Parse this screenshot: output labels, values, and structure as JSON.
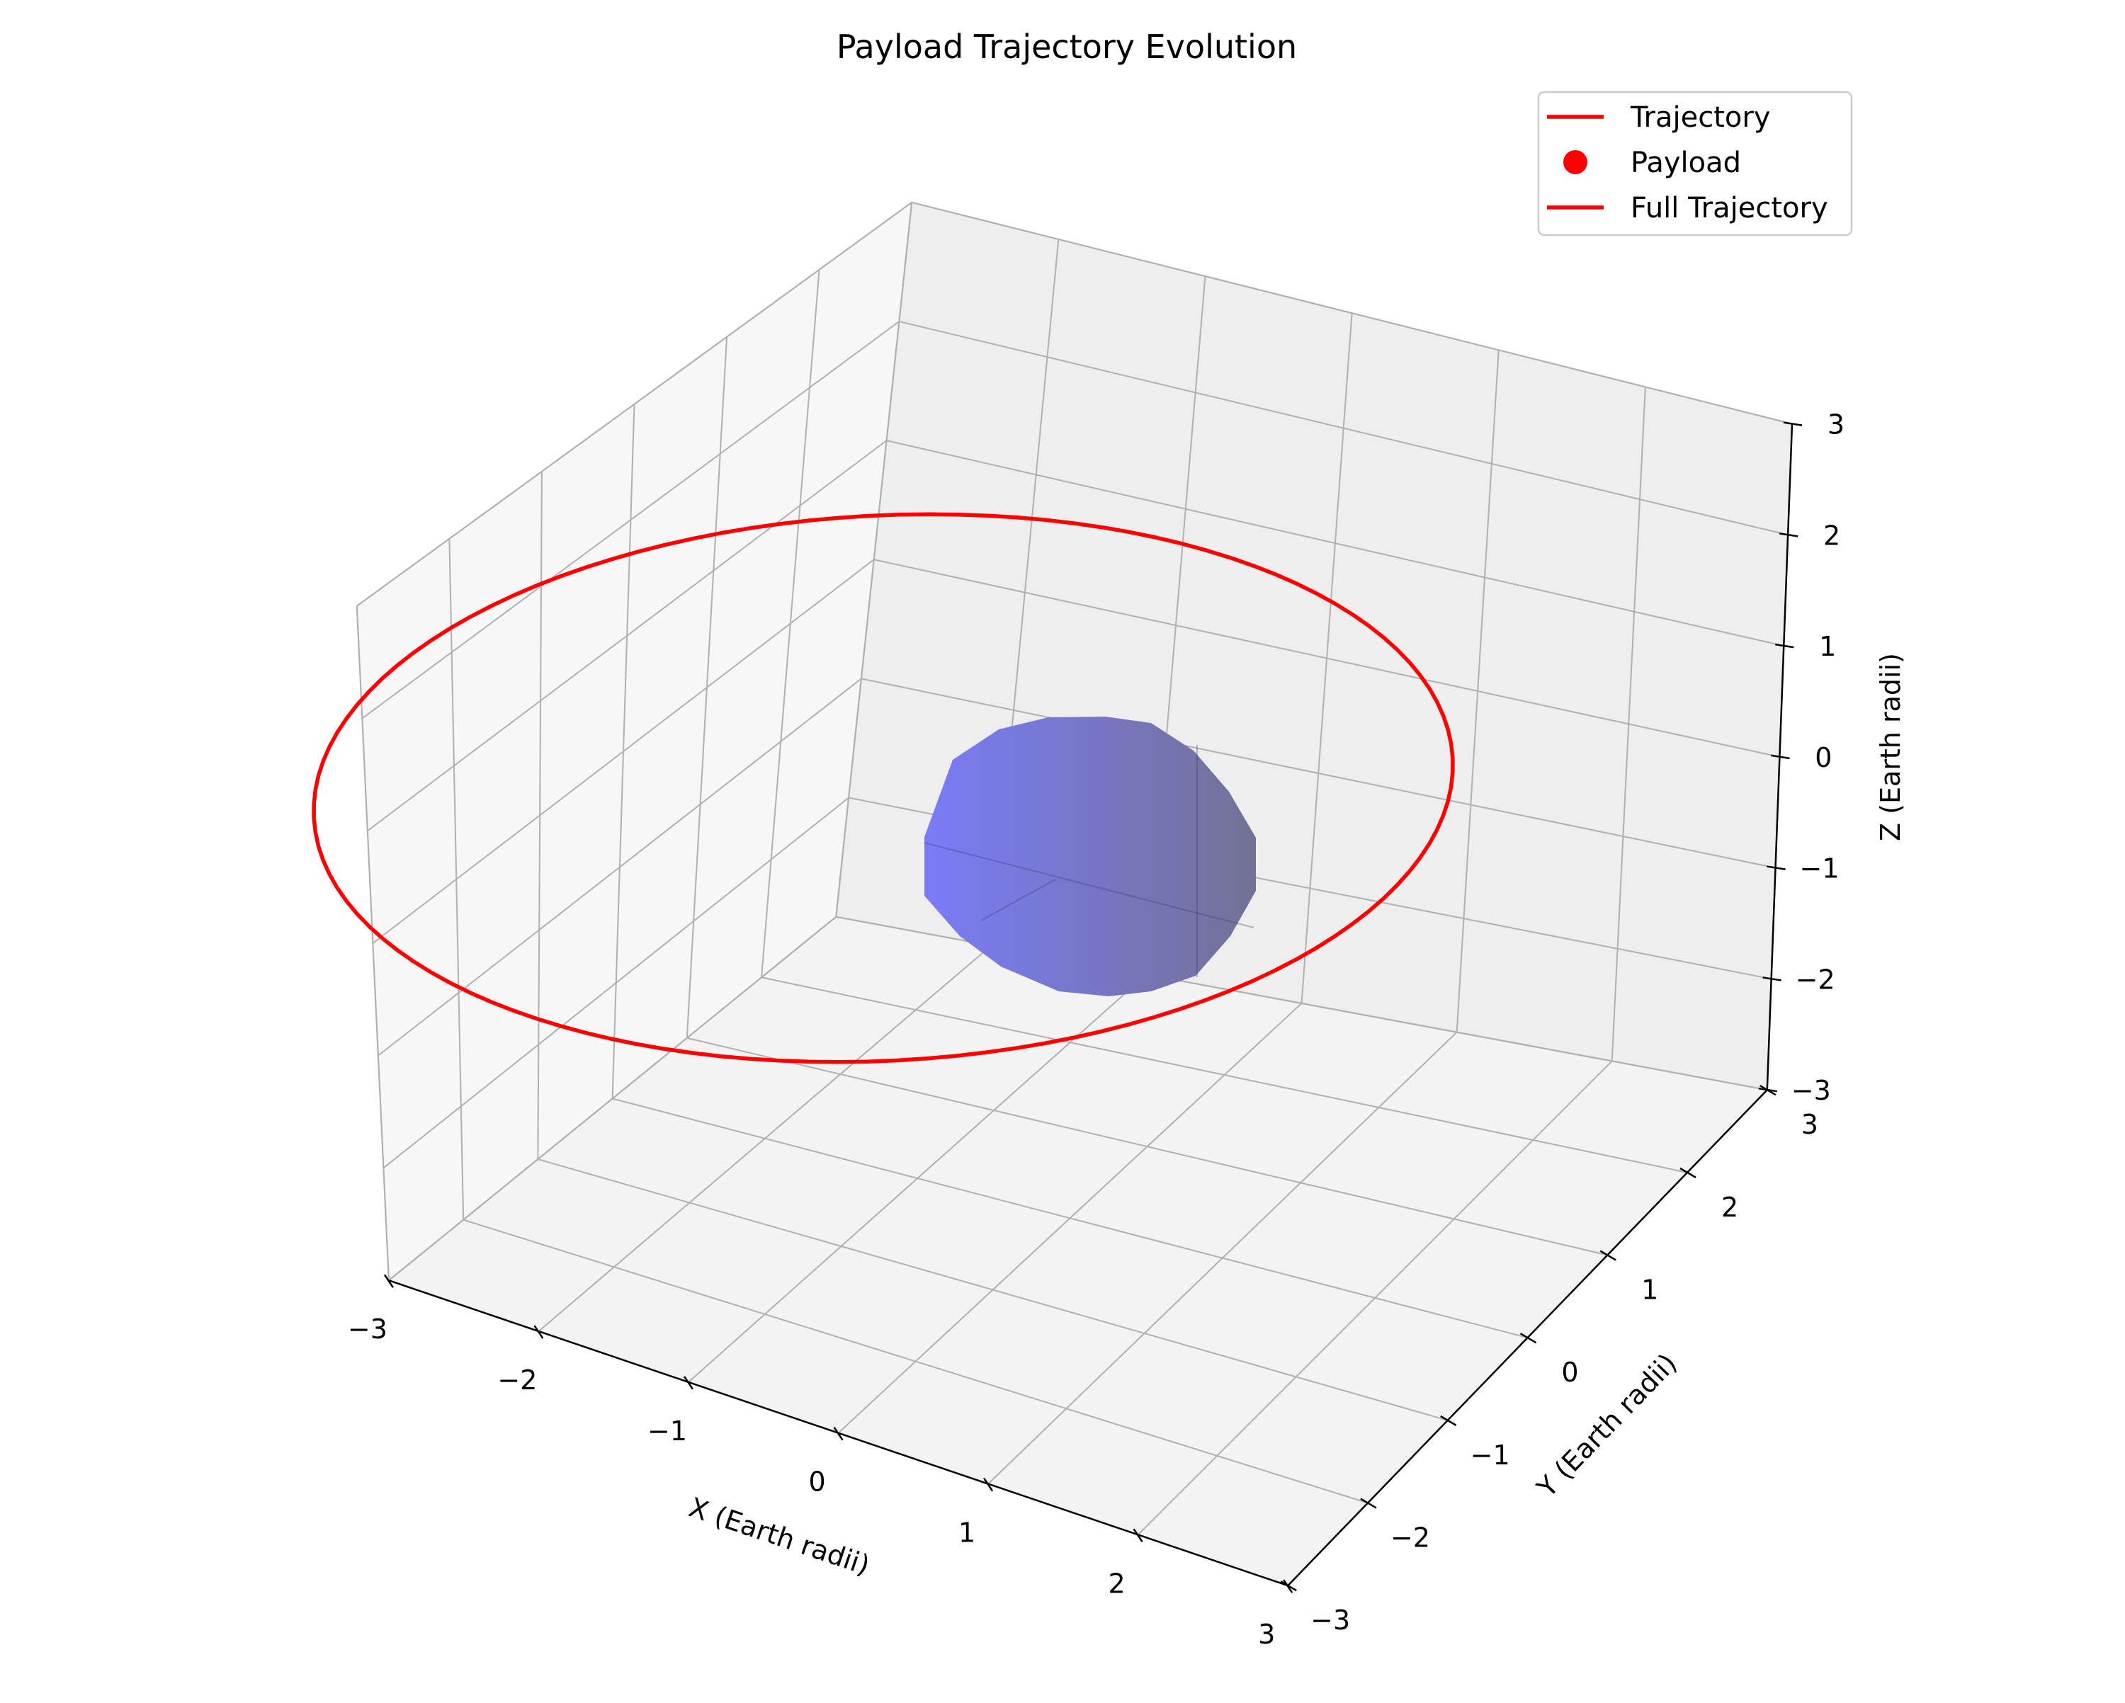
{
  "chart_data": {
    "type": "line",
    "projection": "3d",
    "title": "Payload Trajectory Evolution",
    "xlabel": "X (Earth radii)",
    "ylabel": "Y (Earth radii)",
    "zlabel": "Z (Earth radii)",
    "xlim": [
      -3,
      3
    ],
    "ylim": [
      -3,
      3
    ],
    "zlim": [
      -3,
      3
    ],
    "xticks": [
      "−3",
      "−2",
      "−1",
      "0",
      "1",
      "2",
      "3"
    ],
    "yticks": [
      "−3",
      "−2",
      "−1",
      "0",
      "1",
      "2",
      "3"
    ],
    "zticks": [
      "−3",
      "−2",
      "−1",
      "0",
      "1",
      "2",
      "3"
    ],
    "grid": true,
    "legend_position": "top-right",
    "legend": [
      {
        "label": "Trajectory",
        "marker": "line",
        "color": "#ff0000"
      },
      {
        "label": "Payload",
        "marker": "dot",
        "color": "#ff0000"
      },
      {
        "label": "Full Trajectory",
        "marker": "line",
        "color": "#ff0000"
      }
    ],
    "series": [
      {
        "kind": "orbit",
        "color": "#ff0000",
        "orbit_center": [
          0,
          0,
          0
        ],
        "orbit_radius": 3.7,
        "orbit_plane_z": 0,
        "note_visible": "circular orbit in z = 0 plane"
      }
    ],
    "earth": {
      "center": [
        0,
        0,
        0
      ],
      "radius": 1,
      "color": "#7b7bf5",
      "shade_color": "#757597"
    }
  }
}
